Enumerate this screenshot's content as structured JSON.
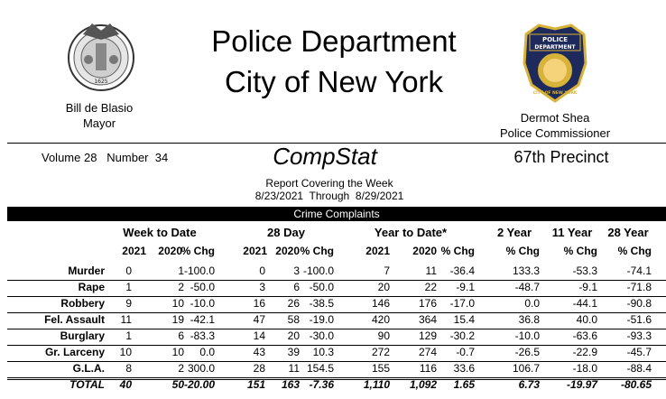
{
  "header": {
    "title_line1": "Police Department",
    "title_line2": "City of New York",
    "mayor_name": "Bill de Blasio",
    "mayor_title": "Mayor",
    "commissioner_name": "Dermot Shea",
    "commissioner_title": "Police Commissioner",
    "volume": "Volume 28   Number  34",
    "report_name": "CompStat",
    "precinct": "67th Precinct",
    "report_line1": "Report Covering the Week",
    "report_line2": "8/23/2021  Through  8/29/2021",
    "seal_left_text": "1625",
    "seal_right_lines": [
      "POLICE",
      "DEPARTMENT",
      "CITY OF NEW YORK"
    ]
  },
  "table": {
    "banner": "Crime Complaints",
    "groups": {
      "week": "Week to Date",
      "day28": "28 Day",
      "ytd": "Year to Date*",
      "yr2": "2 Year",
      "yr11": "11 Year",
      "yr28": "28 Year"
    },
    "sub": {
      "y2021": "2021",
      "y2020": "2020",
      "chg": "% Chg"
    },
    "rows": [
      {
        "label": "Murder",
        "w21": "0",
        "w20": "1",
        "wc": "-100.0",
        "d21": "0",
        "d20": "3",
        "dc": "-100.0",
        "y21": "7",
        "y20": "11",
        "yc": "-36.4",
        "c2": "133.3",
        "c11": "-53.3",
        "c28": "-74.1"
      },
      {
        "label": "Rape",
        "w21": "1",
        "w20": "2",
        "wc": "-50.0",
        "d21": "3",
        "d20": "6",
        "dc": "-50.0",
        "y21": "20",
        "y20": "22",
        "yc": "-9.1",
        "c2": "-48.7",
        "c11": "-9.1",
        "c28": "-71.8"
      },
      {
        "label": "Robbery",
        "w21": "9",
        "w20": "10",
        "wc": "-10.0",
        "d21": "16",
        "d20": "26",
        "dc": "-38.5",
        "y21": "146",
        "y20": "176",
        "yc": "-17.0",
        "c2": "0.0",
        "c11": "-44.1",
        "c28": "-90.8"
      },
      {
        "label": "Fel. Assault",
        "w21": "11",
        "w20": "19",
        "wc": "-42.1",
        "d21": "47",
        "d20": "58",
        "dc": "-19.0",
        "y21": "420",
        "y20": "364",
        "yc": "15.4",
        "c2": "36.8",
        "c11": "40.0",
        "c28": "-51.6"
      },
      {
        "label": "Burglary",
        "w21": "1",
        "w20": "6",
        "wc": "-83.3",
        "d21": "14",
        "d20": "20",
        "dc": "-30.0",
        "y21": "90",
        "y20": "129",
        "yc": "-30.2",
        "c2": "-10.0",
        "c11": "-63.6",
        "c28": "-93.3"
      },
      {
        "label": "Gr. Larceny",
        "w21": "10",
        "w20": "10",
        "wc": "0.0",
        "d21": "43",
        "d20": "39",
        "dc": "10.3",
        "y21": "272",
        "y20": "274",
        "yc": "-0.7",
        "c2": "-26.5",
        "c11": "-22.9",
        "c28": "-45.7"
      },
      {
        "label": "G.L.A.",
        "w21": "8",
        "w20": "2",
        "wc": "300.0",
        "d21": "28",
        "d20": "11",
        "dc": "154.5",
        "y21": "155",
        "y20": "116",
        "yc": "33.6",
        "c2": "106.7",
        "c11": "-18.0",
        "c28": "-88.4"
      }
    ],
    "total": {
      "label": "TOTAL",
      "w21": "40",
      "w20": "50",
      "wc": "-20.00",
      "d21": "151",
      "d20": "163",
      "dc": "-7.36",
      "y21": "1,110",
      "y20": "1,092",
      "yc": "1.65",
      "c2": "6.73",
      "c11": "-19.97",
      "c28": "-80.65"
    }
  }
}
